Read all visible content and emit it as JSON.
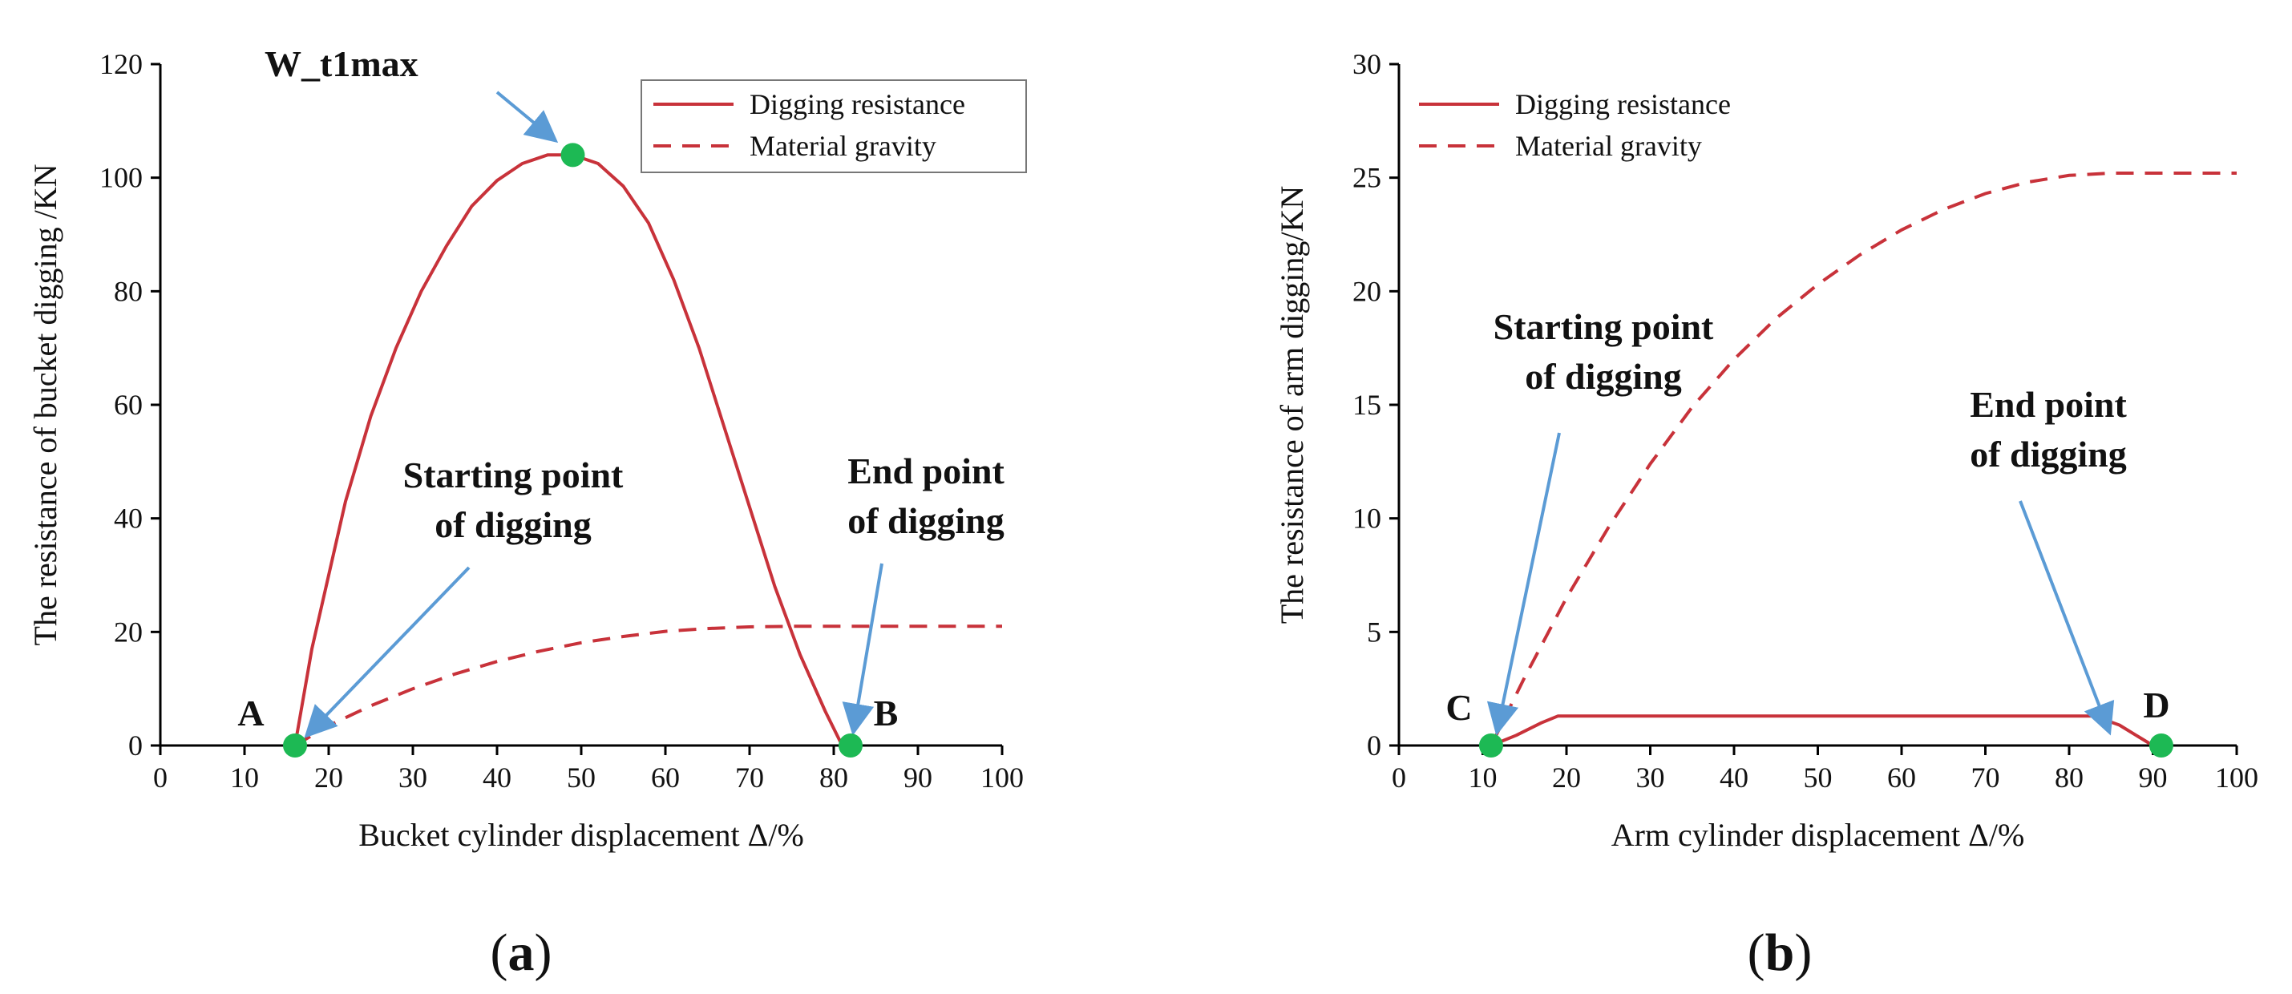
{
  "colors": {
    "series": "#c8323a",
    "marker": "#1db954",
    "arrow": "#5b9bd5",
    "axis": "#000000"
  },
  "chart_data": [
    {
      "id": "a",
      "type": "line",
      "panel_label": "a",
      "title": "",
      "xlabel": "Bucket cylinder displacement Δ/%",
      "ylabel": "The resistance of bucket digging /KN",
      "xlim": [
        0,
        100
      ],
      "ylim": [
        0,
        120
      ],
      "xticks": [
        0,
        10,
        20,
        30,
        40,
        50,
        60,
        70,
        80,
        90,
        100
      ],
      "yticks": [
        0,
        20,
        40,
        60,
        80,
        100,
        120
      ],
      "legend": {
        "position": "top-right",
        "entries": [
          "Digging resistance",
          "Material gravity"
        ]
      },
      "series": [
        {
          "name": "Digging resistance",
          "style": "solid",
          "x": [
            16,
            18,
            20,
            22,
            25,
            28,
            31,
            34,
            37,
            40,
            43,
            46,
            49,
            52,
            55,
            58,
            61,
            64,
            67,
            70,
            73,
            76,
            79,
            81
          ],
          "y": [
            0,
            17,
            30,
            43,
            58,
            70,
            80,
            88,
            95,
            99.5,
            102.5,
            104,
            104,
            102.5,
            98.5,
            92,
            82,
            70,
            56,
            42,
            28,
            16,
            6,
            0
          ]
        },
        {
          "name": "Material gravity",
          "style": "dashed",
          "x": [
            16,
            20,
            25,
            30,
            35,
            40,
            45,
            50,
            55,
            60,
            65,
            70,
            75,
            80,
            85,
            90,
            95,
            100
          ],
          "y": [
            0,
            3.5,
            7,
            10,
            12.6,
            14.8,
            16.6,
            18.1,
            19.2,
            20.1,
            20.6,
            20.9,
            21,
            21,
            21,
            21,
            21,
            21
          ]
        }
      ],
      "markers": [
        {
          "label": "A",
          "x": 16,
          "y": 0
        },
        {
          "label": "W_t1max",
          "x": 49,
          "y": 104
        },
        {
          "label": "B",
          "x": 82,
          "y": 0
        }
      ],
      "annotations": [
        {
          "id": "peak",
          "text": [
            "W_t1max"
          ]
        },
        {
          "id": "start",
          "text": [
            "Starting point",
            "of digging"
          ]
        },
        {
          "id": "end",
          "text": [
            "End point",
            "of digging"
          ]
        }
      ]
    },
    {
      "id": "b",
      "type": "line",
      "panel_label": "b",
      "title": "",
      "xlabel": "Arm cylinder displacement Δ/%",
      "ylabel": "The resistance of arm digging/KN",
      "xlim": [
        0,
        100
      ],
      "ylim": [
        0,
        30
      ],
      "xticks": [
        0,
        10,
        20,
        30,
        40,
        50,
        60,
        70,
        80,
        90,
        100
      ],
      "yticks": [
        0,
        5,
        10,
        15,
        20,
        25,
        30
      ],
      "legend": {
        "position": "top-left",
        "entries": [
          "Digging resistance",
          "Material gravity"
        ]
      },
      "series": [
        {
          "name": "Digging resistance",
          "style": "solid",
          "x": [
            11,
            14,
            17,
            19,
            30,
            50,
            70,
            83,
            86,
            88,
            90
          ],
          "y": [
            0,
            0.45,
            1.0,
            1.3,
            1.3,
            1.3,
            1.3,
            1.3,
            0.9,
            0.45,
            0
          ]
        },
        {
          "name": "Material gravity",
          "style": "dashed",
          "x": [
            11,
            15,
            20,
            25,
            30,
            35,
            40,
            45,
            50,
            55,
            60,
            65,
            70,
            75,
            80,
            85,
            90,
            95,
            100
          ],
          "y": [
            0,
            3.0,
            6.5,
            9.6,
            12.4,
            14.9,
            17.0,
            18.8,
            20.3,
            21.6,
            22.7,
            23.6,
            24.3,
            24.8,
            25.1,
            25.2,
            25.2,
            25.2,
            25.2
          ]
        }
      ],
      "markers": [
        {
          "label": "C",
          "x": 11,
          "y": 0
        },
        {
          "label": "D",
          "x": 91,
          "y": 0
        }
      ],
      "annotations": [
        {
          "id": "start",
          "text": [
            "Starting point",
            "of digging"
          ]
        },
        {
          "id": "end",
          "text": [
            "End point",
            "of digging"
          ]
        }
      ]
    }
  ]
}
